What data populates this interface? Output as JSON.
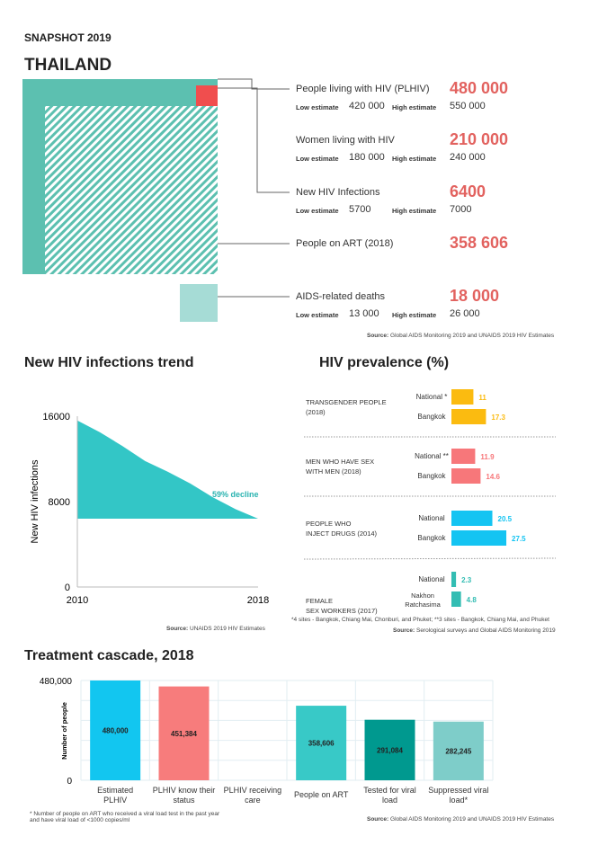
{
  "header": {
    "snapshot": "SNAPSHOT 2019",
    "country": "THAILAND"
  },
  "snapshot": {
    "low_label": "Low estimate",
    "high_label": "High estimate",
    "items": [
      {
        "label": "People living with HIV (PLHIV)",
        "value": "480 000",
        "low": "420 000",
        "high": "550 000"
      },
      {
        "label": "Women living with HIV",
        "value": "210 000",
        "low": "180 000",
        "high": "240 000"
      },
      {
        "label": "New HIV Infections",
        "value": "6400",
        "low": "5700",
        "high": "7000"
      },
      {
        "label": "People on ART (2018)",
        "value": "358 606"
      },
      {
        "label": "AIDS-related deaths",
        "value": "18 000",
        "low": "13 000",
        "high": "26 000"
      }
    ],
    "source_bold": "Source:",
    "source": " Global AIDS Monitoring 2019 and UNAIDS 2019 HIV Estimates",
    "colors": {
      "plhiv": "#5cc0b0",
      "new_infections": "#f04e4e",
      "deaths": "#a6dcd6",
      "value": "#e2625f"
    }
  },
  "chart_data": [
    {
      "type": "area",
      "title": "New HIV infections trend",
      "ylabel": "New HIV infections",
      "xlabel": "",
      "x": [
        2010,
        2011,
        2012,
        2013,
        2014,
        2015,
        2016,
        2017,
        2018
      ],
      "y": [
        15600,
        14500,
        13200,
        11800,
        10800,
        9700,
        8400,
        7300,
        6400
      ],
      "baseline": 6400,
      "ylim": [
        0,
        16000
      ],
      "yticks": [
        "0",
        "8000",
        "16000"
      ],
      "xticks": [
        "2010",
        "2018"
      ],
      "annotation": "59% decline",
      "color": "#33c6c6",
      "grid": false,
      "source_bold": "Source:",
      "source": " UNAIDS 2019 HIV Estimates"
    },
    {
      "type": "bar",
      "orientation": "horizontal",
      "title": "HIV prevalence (%)",
      "groups": [
        {
          "name": "TRANSGENDER PEOPLE (2018)",
          "color": "#fbbb10",
          "bars": [
            {
              "label": "National *",
              "value": 11,
              "text": "11"
            },
            {
              "label": "Bangkok",
              "value": 17.3,
              "text": "17.3"
            }
          ]
        },
        {
          "name": "MEN WHO HAVE SEX WITH MEN (2018)",
          "color": "#f7777a",
          "bars": [
            {
              "label": "National **",
              "value": 11.9,
              "text": "11.9"
            },
            {
              "label": "Bangkok",
              "value": 14.6,
              "text": "14.6"
            }
          ]
        },
        {
          "name": "PEOPLE WHO INJECT DRUGS (2014)",
          "color": "#14c4f2",
          "bars": [
            {
              "label": "National",
              "value": 20.5,
              "text": "20.5"
            },
            {
              "label": "Bangkok",
              "value": 27.5,
              "text": "27.5"
            }
          ]
        },
        {
          "name": "FEMALE SEX WORKERS (2017)",
          "color": "#33bdb3",
          "bars": [
            {
              "label": "National",
              "value": 2.3,
              "text": "2.3"
            },
            {
              "label": "Nakhon Ratchasima",
              "value": 4.8,
              "text": "4.8"
            }
          ]
        }
      ],
      "footnote": "*4 sites - Bangkok, Chiang Mai, Chonburi, and Phuket; **3 sites - Bangkok, Chiang Mai, and Phuket",
      "source_bold": "Source:",
      "source": " Serological surveys and Global AIDS Monitoring 2019"
    },
    {
      "type": "bar",
      "title": "Treatment cascade, 2018",
      "ylabel": "Number of people",
      "ylim": [
        0,
        480000
      ],
      "yticks": [
        "0",
        "480,000"
      ],
      "grid": true,
      "categories": [
        "Estimated PLHIV",
        "PLHIV know their status",
        "PLHIV receiving care",
        "People on ART",
        "Tested for viral load",
        "Suppressed viral load*"
      ],
      "values": [
        480000,
        451384,
        null,
        358606,
        291084,
        282245
      ],
      "labels": [
        "480,000",
        "451,384",
        "",
        "358,606",
        "291,084",
        "282,245"
      ],
      "colors": [
        "#12c6f0",
        "#f77c7c",
        "#ffffff",
        "#38c9c7",
        "#00998f",
        "#7ecdc9"
      ],
      "footnote": "* Number of people on ART who received a viral load test in the past year and have viral load of <1000 copies/ml",
      "source_bold": "Source:",
      "source": " Global AIDS Monitoring 2019 and UNAIDS 2019 HIV Estimates"
    }
  ]
}
